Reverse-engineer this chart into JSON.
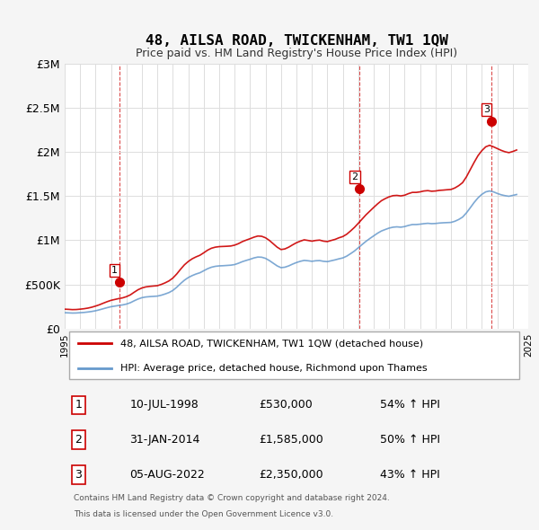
{
  "title": "48, AILSA ROAD, TWICKENHAM, TW1 1QW",
  "subtitle": "Price paid vs. HM Land Registry's House Price Index (HPI)",
  "ylabel": "",
  "ylim": [
    0,
    3000000
  ],
  "yticks": [
    0,
    500000,
    1000000,
    1500000,
    2000000,
    2500000,
    3000000
  ],
  "ytick_labels": [
    "£0",
    "£500K",
    "£1M",
    "£1.5M",
    "£2M",
    "£2.5M",
    "£3M"
  ],
  "background_color": "#f5f5f5",
  "plot_bg_color": "#ffffff",
  "red_color": "#cc0000",
  "blue_color": "#6699cc",
  "dashed_color": "#cc0000",
  "legend_label_red": "48, AILSA ROAD, TWICKENHAM, TW1 1QW (detached house)",
  "legend_label_blue": "HPI: Average price, detached house, Richmond upon Thames",
  "transactions": [
    {
      "num": 1,
      "date": "10-JUL-1998",
      "price": 530000,
      "pct": "54%",
      "dir": "↑",
      "x_year": 1998.53
    },
    {
      "num": 2,
      "date": "31-JAN-2014",
      "price": 1585000,
      "pct": "50%",
      "dir": "↑",
      "x_year": 2014.08
    },
    {
      "num": 3,
      "date": "05-AUG-2022",
      "price": 2350000,
      "pct": "43%",
      "dir": "↑",
      "x_year": 2022.59
    }
  ],
  "footer_line1": "Contains HM Land Registry data © Crown copyright and database right 2024.",
  "footer_line2": "This data is licensed under the Open Government Licence v3.0.",
  "hpi_data": {
    "years": [
      1995.0,
      1995.25,
      1995.5,
      1995.75,
      1996.0,
      1996.25,
      1996.5,
      1996.75,
      1997.0,
      1997.25,
      1997.5,
      1997.75,
      1998.0,
      1998.25,
      1998.5,
      1998.75,
      1999.0,
      1999.25,
      1999.5,
      1999.75,
      2000.0,
      2000.25,
      2000.5,
      2000.75,
      2001.0,
      2001.25,
      2001.5,
      2001.75,
      2002.0,
      2002.25,
      2002.5,
      2002.75,
      2003.0,
      2003.25,
      2003.5,
      2003.75,
      2004.0,
      2004.25,
      2004.5,
      2004.75,
      2005.0,
      2005.25,
      2005.5,
      2005.75,
      2006.0,
      2006.25,
      2006.5,
      2006.75,
      2007.0,
      2007.25,
      2007.5,
      2007.75,
      2008.0,
      2008.25,
      2008.5,
      2008.75,
      2009.0,
      2009.25,
      2009.5,
      2009.75,
      2010.0,
      2010.25,
      2010.5,
      2010.75,
      2011.0,
      2011.25,
      2011.5,
      2011.75,
      2012.0,
      2012.25,
      2012.5,
      2012.75,
      2013.0,
      2013.25,
      2013.5,
      2013.75,
      2014.0,
      2014.25,
      2014.5,
      2014.75,
      2015.0,
      2015.25,
      2015.5,
      2015.75,
      2016.0,
      2016.25,
      2016.5,
      2016.75,
      2017.0,
      2017.25,
      2017.5,
      2017.75,
      2018.0,
      2018.25,
      2018.5,
      2018.75,
      2019.0,
      2019.25,
      2019.5,
      2019.75,
      2020.0,
      2020.25,
      2020.5,
      2020.75,
      2021.0,
      2021.25,
      2021.5,
      2021.75,
      2022.0,
      2022.25,
      2022.5,
      2022.75,
      2023.0,
      2023.25,
      2023.5,
      2023.75,
      2024.0,
      2024.25
    ],
    "values": [
      180000,
      178000,
      176000,
      177000,
      180000,
      183000,
      188000,
      194000,
      202000,
      213000,
      225000,
      237000,
      248000,
      255000,
      262000,
      268000,
      278000,
      293000,
      315000,
      335000,
      350000,
      358000,
      362000,
      365000,
      368000,
      378000,
      392000,
      408000,
      432000,
      468000,
      510000,
      548000,
      578000,
      600000,
      618000,
      632000,
      655000,
      678000,
      695000,
      705000,
      710000,
      712000,
      715000,
      718000,
      725000,
      740000,
      758000,
      772000,
      785000,
      800000,
      810000,
      808000,
      795000,
      770000,
      740000,
      710000,
      690000,
      695000,
      710000,
      730000,
      748000,
      762000,
      772000,
      768000,
      762000,
      768000,
      770000,
      762000,
      758000,
      768000,
      778000,
      790000,
      800000,
      820000,
      848000,
      878000,
      915000,
      952000,
      988000,
      1020000,
      1050000,
      1080000,
      1105000,
      1122000,
      1138000,
      1148000,
      1152000,
      1148000,
      1155000,
      1168000,
      1178000,
      1178000,
      1182000,
      1188000,
      1192000,
      1188000,
      1190000,
      1195000,
      1198000,
      1200000,
      1202000,
      1215000,
      1235000,
      1262000,
      1310000,
      1368000,
      1428000,
      1480000,
      1520000,
      1548000,
      1558000,
      1548000,
      1530000,
      1515000,
      1505000,
      1498000,
      1508000,
      1518000
    ]
  },
  "red_hpi_data": {
    "years": [
      1995.0,
      1995.25,
      1995.5,
      1995.75,
      1996.0,
      1996.25,
      1996.5,
      1996.75,
      1997.0,
      1997.25,
      1997.5,
      1997.75,
      1998.0,
      1998.25,
      1998.5,
      1998.75,
      1999.0,
      1999.25,
      1999.5,
      1999.75,
      2000.0,
      2000.25,
      2000.5,
      2000.75,
      2001.0,
      2001.25,
      2001.5,
      2001.75,
      2002.0,
      2002.25,
      2002.5,
      2002.75,
      2003.0,
      2003.25,
      2003.5,
      2003.75,
      2004.0,
      2004.25,
      2004.5,
      2004.75,
      2005.0,
      2005.25,
      2005.5,
      2005.75,
      2006.0,
      2006.25,
      2006.5,
      2006.75,
      2007.0,
      2007.25,
      2007.5,
      2007.75,
      2008.0,
      2008.25,
      2008.5,
      2008.75,
      2009.0,
      2009.25,
      2009.5,
      2009.75,
      2010.0,
      2010.25,
      2010.5,
      2010.75,
      2011.0,
      2011.25,
      2011.5,
      2011.75,
      2012.0,
      2012.25,
      2012.5,
      2012.75,
      2013.0,
      2013.25,
      2013.5,
      2013.75,
      2014.0,
      2014.25,
      2014.5,
      2014.75,
      2015.0,
      2015.25,
      2015.5,
      2015.75,
      2016.0,
      2016.25,
      2016.5,
      2016.75,
      2017.0,
      2017.25,
      2017.5,
      2017.75,
      2018.0,
      2018.25,
      2018.5,
      2018.75,
      2019.0,
      2019.25,
      2019.5,
      2019.75,
      2020.0,
      2020.25,
      2020.5,
      2020.75,
      2021.0,
      2021.25,
      2021.5,
      2021.75,
      2022.0,
      2022.25,
      2022.5,
      2022.75,
      2023.0,
      2023.25,
      2023.5,
      2023.75,
      2024.0,
      2024.25
    ],
    "values": [
      220000,
      218000,
      215000,
      216000,
      220000,
      225000,
      232000,
      242000,
      255000,
      270000,
      288000,
      305000,
      320000,
      330000,
      340000,
      348000,
      362000,
      382000,
      412000,
      440000,
      460000,
      472000,
      478000,
      482000,
      486000,
      500000,
      518000,
      540000,
      572000,
      618000,
      672000,
      722000,
      760000,
      790000,
      812000,
      830000,
      858000,
      888000,
      910000,
      922000,
      928000,
      930000,
      932000,
      935000,
      945000,
      962000,
      985000,
      1002000,
      1018000,
      1035000,
      1048000,
      1045000,
      1028000,
      998000,
      960000,
      922000,
      895000,
      902000,
      922000,
      948000,
      972000,
      990000,
      1005000,
      998000,
      990000,
      998000,
      1002000,
      990000,
      985000,
      998000,
      1010000,
      1028000,
      1042000,
      1068000,
      1105000,
      1145000,
      1192000,
      1240000,
      1288000,
      1330000,
      1372000,
      1412000,
      1448000,
      1472000,
      1492000,
      1505000,
      1508000,
      1502000,
      1510000,
      1528000,
      1542000,
      1542000,
      1548000,
      1558000,
      1562000,
      1555000,
      1558000,
      1565000,
      1568000,
      1572000,
      1575000,
      1592000,
      1618000,
      1652000,
      1718000,
      1800000,
      1882000,
      1958000,
      2015000,
      2058000,
      2075000,
      2058000,
      2038000,
      2018000,
      2002000,
      1992000,
      2005000,
      2022000
    ]
  },
  "x_start": 1995,
  "x_end": 2025,
  "xtick_years": [
    1995,
    1996,
    1997,
    1998,
    1999,
    2000,
    2001,
    2002,
    2003,
    2004,
    2005,
    2006,
    2007,
    2008,
    2009,
    2010,
    2011,
    2012,
    2013,
    2014,
    2015,
    2016,
    2017,
    2018,
    2019,
    2020,
    2021,
    2022,
    2023,
    2024,
    2025
  ]
}
